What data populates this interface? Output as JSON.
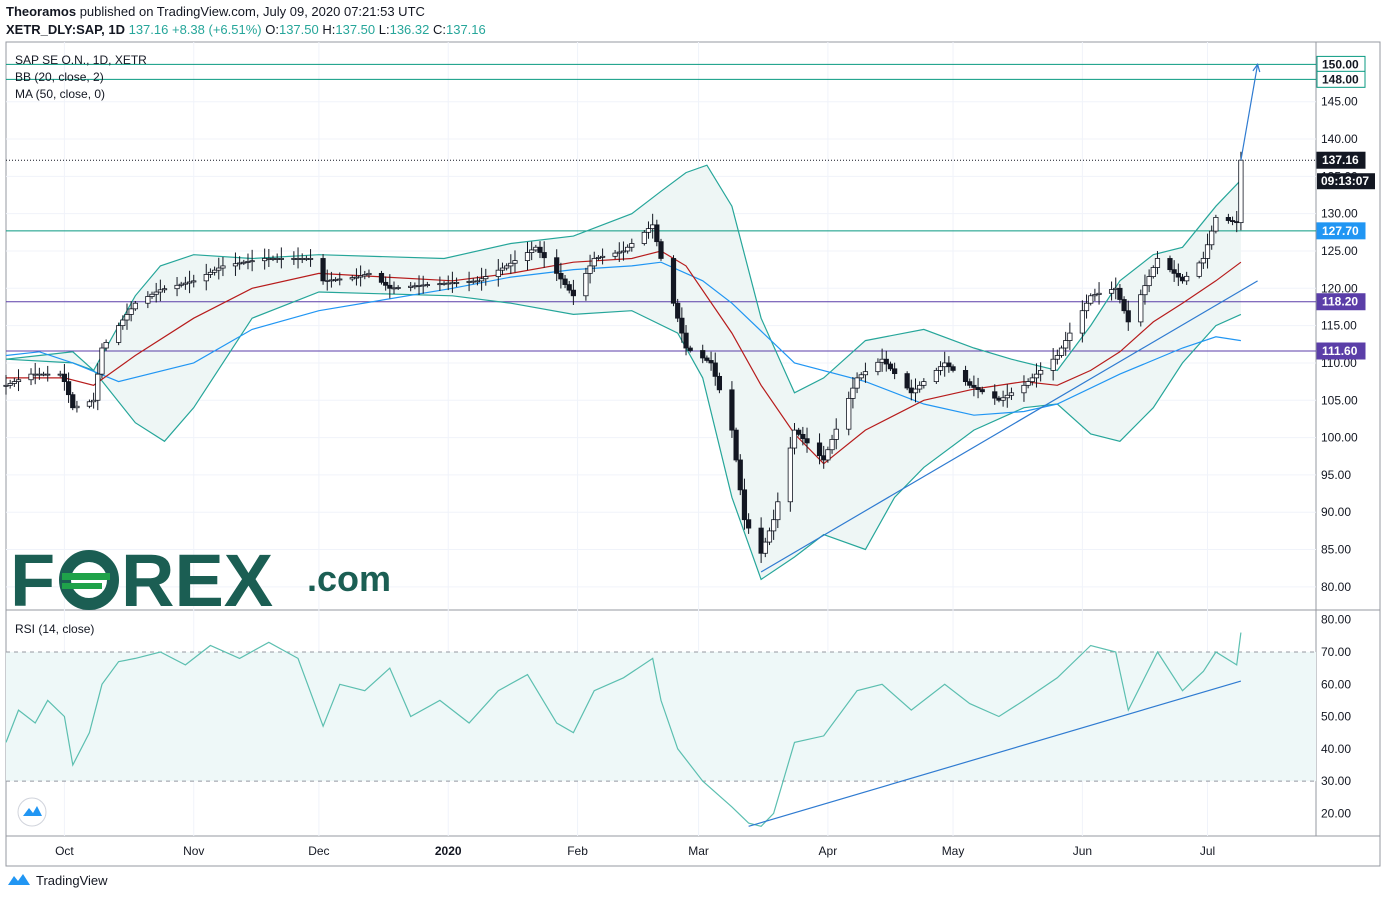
{
  "header": {
    "author": "Theoramos",
    "published_text": "published on TradingView.com, July 09, 2020 07:21:53 UTC",
    "symbol": "XETR_DLY:SAP, 1D",
    "last": "137.16",
    "change": "+8.38 (+6.51%)",
    "o_label": "O:",
    "o": "137.50",
    "h_label": "H:",
    "h": "137.50",
    "l_label": "L:",
    "l": "136.32",
    "c_label": "C:",
    "c": "137.16"
  },
  "legend": {
    "name": "SAP SE O.N., 1D, XETR",
    "bb": "BB (20, close, 2)",
    "ma": "MA (50, close, 0)",
    "rsi": "RSI (14, close)"
  },
  "watermark": {
    "brand_left": "F",
    "brand_mid": "REX",
    "brand_suffix": ".com"
  },
  "footer": {
    "brand": "TradingView"
  },
  "colors": {
    "up": "#ffffff",
    "down": "#131722",
    "bb": "#26a69a",
    "bb_fill": "#eef6f5",
    "ma50": "#2196f3",
    "basis": "#b71c1c",
    "level_teal": "#089981",
    "level_purple": "#5b3ea8",
    "trend": "#2f7bd1",
    "rsi": "#5cbfb0",
    "brand": "#1b5e53",
    "brand_accent": "#1fa24a"
  },
  "chart_data": {
    "type": "candlestick",
    "x_range": [
      "2019-09-17",
      "2020-07-27"
    ],
    "y_range": [
      76.9,
      153.0
    ],
    "x_ticks": [
      {
        "date": "2019-10-01",
        "label": "Oct"
      },
      {
        "date": "2019-11-01",
        "label": "Nov"
      },
      {
        "date": "2019-12-01",
        "label": "Dec"
      },
      {
        "date": "2020-01-01",
        "label": "2020"
      },
      {
        "date": "2020-02-01",
        "label": "Feb"
      },
      {
        "date": "2020-03-01",
        "label": "Mar"
      },
      {
        "date": "2020-04-01",
        "label": "Apr"
      },
      {
        "date": "2020-05-01",
        "label": "May"
      },
      {
        "date": "2020-06-01",
        "label": "Jun"
      },
      {
        "date": "2020-07-01",
        "label": "Jul"
      }
    ],
    "y_ticks": [
      "80.00",
      "85.00",
      "90.00",
      "95.00",
      "100.00",
      "105.00",
      "110.00",
      "115.00",
      "120.00",
      "125.00",
      "130.00",
      "135.00",
      "140.00",
      "145.00"
    ],
    "price_labels": [
      {
        "value": 150.0,
        "text": "150.00",
        "style": "level"
      },
      {
        "value": 148.0,
        "text": "148.00",
        "style": "level"
      },
      {
        "value": 137.16,
        "text": "137.16",
        "style": "last"
      },
      {
        "value": 127.7,
        "text": "127.70",
        "style": "blue"
      },
      {
        "value": 118.2,
        "text": "118.20",
        "style": "purple"
      },
      {
        "value": 111.6,
        "text": "111.60",
        "style": "purple"
      }
    ],
    "countdown": "09:13:07",
    "horizontal_levels": [
      {
        "value": 150.0,
        "color": "level_teal"
      },
      {
        "value": 148.0,
        "color": "level_teal"
      },
      {
        "value": 127.7,
        "color": "level_teal"
      },
      {
        "value": 118.2,
        "color": "level_purple"
      },
      {
        "value": 111.6,
        "color": "level_purple"
      }
    ],
    "last_price": 137.16,
    "anchors": [
      [
        "2019-09-17",
        107.0
      ],
      [
        "2019-09-23",
        108.5
      ],
      [
        "2019-09-30",
        108.5
      ],
      [
        "2019-10-01",
        107.5
      ],
      [
        "2019-10-03",
        104.0
      ],
      [
        "2019-10-08",
        105.0
      ],
      [
        "2019-10-10",
        112.0
      ],
      [
        "2019-10-14",
        115.0
      ],
      [
        "2019-10-18",
        118.0
      ],
      [
        "2019-10-24",
        119.8
      ],
      [
        "2019-11-01",
        121.0
      ],
      [
        "2019-11-08",
        123.0
      ],
      [
        "2019-11-18",
        124.0
      ],
      [
        "2019-11-29",
        124.0
      ],
      [
        "2019-12-02",
        121.0
      ],
      [
        "2019-12-10",
        121.5
      ],
      [
        "2019-12-13",
        122.0
      ],
      [
        "2019-12-18",
        120.0
      ],
      [
        "2019-12-27",
        120.5
      ],
      [
        "2020-01-08",
        121.0
      ],
      [
        "2020-01-15",
        123.0
      ],
      [
        "2020-01-22",
        125.5
      ],
      [
        "2020-01-27",
        122.0
      ],
      [
        "2020-01-31",
        119.0
      ],
      [
        "2020-02-05",
        124.0
      ],
      [
        "2020-02-12",
        125.0
      ],
      [
        "2020-02-19",
        128.5
      ],
      [
        "2020-02-21",
        124.0
      ],
      [
        "2020-02-27",
        112.0
      ],
      [
        "2020-03-04",
        110.0
      ],
      [
        "2020-03-09",
        101.0
      ],
      [
        "2020-03-12",
        89.0
      ],
      [
        "2020-03-16",
        84.5
      ],
      [
        "2020-03-19",
        89.0
      ],
      [
        "2020-03-24",
        101.0
      ],
      [
        "2020-03-31",
        97.0
      ],
      [
        "2020-04-08",
        108.0
      ],
      [
        "2020-04-14",
        110.5
      ],
      [
        "2020-04-21",
        106.0
      ],
      [
        "2020-04-29",
        110.0
      ],
      [
        "2020-05-05",
        107.0
      ],
      [
        "2020-05-12",
        105.0
      ],
      [
        "2020-05-18",
        107.0
      ],
      [
        "2020-05-26",
        111.0
      ],
      [
        "2020-06-03",
        119.0
      ],
      [
        "2020-06-09",
        120.0
      ],
      [
        "2020-06-12",
        115.5
      ],
      [
        "2020-06-19",
        124.0
      ],
      [
        "2020-06-25",
        121.0
      ],
      [
        "2020-06-30",
        124.0
      ],
      [
        "2020-07-03",
        129.5
      ],
      [
        "2020-07-08",
        128.8
      ],
      [
        "2020-07-09",
        137.16
      ]
    ],
    "bb_upper": [
      [
        "2019-09-17",
        110.5
      ],
      [
        "2019-10-03",
        110.0
      ],
      [
        "2019-10-08",
        109.0
      ],
      [
        "2019-10-18",
        119.0
      ],
      [
        "2019-10-24",
        123.0
      ],
      [
        "2019-11-01",
        124.5
      ],
      [
        "2019-11-15",
        124.0
      ],
      [
        "2019-12-01",
        124.5
      ],
      [
        "2019-12-31",
        124.0
      ],
      [
        "2020-01-16",
        126.0
      ],
      [
        "2020-01-31",
        127.0
      ],
      [
        "2020-02-14",
        130.0
      ],
      [
        "2020-02-21",
        133.0
      ],
      [
        "2020-02-27",
        135.5
      ],
      [
        "2020-03-03",
        136.5
      ],
      [
        "2020-03-09",
        131.0
      ],
      [
        "2020-03-16",
        116.0
      ],
      [
        "2020-03-24",
        106.0
      ],
      [
        "2020-03-31",
        108.0
      ],
      [
        "2020-04-10",
        113.0
      ],
      [
        "2020-04-24",
        114.5
      ],
      [
        "2020-05-06",
        112.0
      ],
      [
        "2020-05-15",
        110.5
      ],
      [
        "2020-05-26",
        109.0
      ],
      [
        "2020-06-03",
        115.0
      ],
      [
        "2020-06-10",
        121.0
      ],
      [
        "2020-06-18",
        124.5
      ],
      [
        "2020-06-25",
        125.5
      ],
      [
        "2020-07-03",
        131.0
      ],
      [
        "2020-07-09",
        134.5
      ]
    ],
    "bb_lower": [
      [
        "2019-09-17",
        110.5
      ],
      [
        "2019-09-25",
        111.0
      ],
      [
        "2019-10-03",
        111.5
      ],
      [
        "2019-10-08",
        109.0
      ],
      [
        "2019-10-18",
        102.0
      ],
      [
        "2019-10-25",
        99.5
      ],
      [
        "2019-11-01",
        104.0
      ],
      [
        "2019-11-15",
        116.0
      ],
      [
        "2019-12-01",
        119.5
      ],
      [
        "2020-01-02",
        119.0
      ],
      [
        "2020-01-16",
        118.0
      ],
      [
        "2020-01-31",
        116.5
      ],
      [
        "2020-02-14",
        117.0
      ],
      [
        "2020-02-25",
        114.0
      ],
      [
        "2020-03-02",
        108.0
      ],
      [
        "2020-03-09",
        92.0
      ],
      [
        "2020-03-16",
        81.0
      ],
      [
        "2020-03-24",
        84.0
      ],
      [
        "2020-03-31",
        87.0
      ],
      [
        "2020-04-10",
        85.0
      ],
      [
        "2020-04-17",
        92.0
      ],
      [
        "2020-04-24",
        96.0
      ],
      [
        "2020-05-06",
        101.0
      ],
      [
        "2020-05-18",
        104.0
      ],
      [
        "2020-05-26",
        104.5
      ],
      [
        "2020-06-03",
        100.5
      ],
      [
        "2020-06-10",
        99.5
      ],
      [
        "2020-06-18",
        104.0
      ],
      [
        "2020-06-25",
        110.0
      ],
      [
        "2020-07-03",
        115.0
      ],
      [
        "2020-07-09",
        116.5
      ]
    ],
    "bb_basis": [
      [
        "2019-09-17",
        108.0
      ],
      [
        "2019-10-01",
        108.0
      ],
      [
        "2019-10-08",
        107.0
      ],
      [
        "2019-10-18",
        111.0
      ],
      [
        "2019-11-01",
        116.0
      ],
      [
        "2019-11-15",
        120.0
      ],
      [
        "2019-12-01",
        122.0
      ],
      [
        "2020-01-02",
        121.0
      ],
      [
        "2020-01-16",
        122.0
      ],
      [
        "2020-01-31",
        123.5
      ],
      [
        "2020-02-14",
        124.0
      ],
      [
        "2020-02-21",
        125.0
      ],
      [
        "2020-02-27",
        123.0
      ],
      [
        "2020-03-09",
        114.0
      ],
      [
        "2020-03-16",
        107.0
      ],
      [
        "2020-03-24",
        100.5
      ],
      [
        "2020-03-31",
        96.5
      ],
      [
        "2020-04-10",
        101.0
      ],
      [
        "2020-04-24",
        105.0
      ],
      [
        "2020-05-06",
        106.5
      ],
      [
        "2020-05-18",
        107.5
      ],
      [
        "2020-05-26",
        107.0
      ],
      [
        "2020-06-03",
        109.0
      ],
      [
        "2020-06-10",
        111.5
      ],
      [
        "2020-06-18",
        115.5
      ],
      [
        "2020-06-25",
        118.0
      ],
      [
        "2020-07-03",
        121.0
      ],
      [
        "2020-07-09",
        123.5
      ]
    ],
    "ma50": [
      [
        "2019-09-17",
        111.0
      ],
      [
        "2019-09-25",
        111.5
      ],
      [
        "2019-10-03",
        110.0
      ],
      [
        "2019-10-14",
        107.5
      ],
      [
        "2019-11-01",
        110.0
      ],
      [
        "2019-11-15",
        114.5
      ],
      [
        "2019-12-01",
        117.0
      ],
      [
        "2020-01-02",
        120.0
      ],
      [
        "2020-01-16",
        121.5
      ],
      [
        "2020-01-31",
        122.5
      ],
      [
        "2020-02-14",
        123.0
      ],
      [
        "2020-02-21",
        123.5
      ],
      [
        "2020-03-02",
        121.0
      ],
      [
        "2020-03-09",
        118.0
      ],
      [
        "2020-03-24",
        110.0
      ],
      [
        "2020-04-10",
        107.5
      ],
      [
        "2020-04-24",
        104.5
      ],
      [
        "2020-05-06",
        103.0
      ],
      [
        "2020-05-18",
        103.5
      ],
      [
        "2020-05-26",
        104.5
      ],
      [
        "2020-06-10",
        108.5
      ],
      [
        "2020-06-25",
        112.0
      ],
      [
        "2020-07-03",
        113.5
      ],
      [
        "2020-07-09",
        113.0
      ]
    ],
    "trendlines": [
      {
        "from": [
          "2020-03-16",
          82.0
        ],
        "to": [
          "2020-07-13",
          121.0
        ]
      },
      {
        "from": [
          "2020-07-09",
          137.16
        ],
        "to": [
          "2020-07-13",
          150.0
        ],
        "arrow": true
      }
    ],
    "rsi": {
      "range": [
        13,
        83
      ],
      "y_ticks": [
        "20.00",
        "30.00",
        "40.00",
        "50.00",
        "60.00",
        "70.00",
        "80.00"
      ],
      "band": [
        30,
        70
      ],
      "points": [
        [
          "2019-09-17",
          42
        ],
        [
          "2019-09-20",
          52
        ],
        [
          "2019-09-24",
          48
        ],
        [
          "2019-09-27",
          55
        ],
        [
          "2019-10-01",
          50
        ],
        [
          "2019-10-03",
          35
        ],
        [
          "2019-10-07",
          45
        ],
        [
          "2019-10-10",
          60
        ],
        [
          "2019-10-14",
          67
        ],
        [
          "2019-10-18",
          68
        ],
        [
          "2019-10-24",
          70
        ],
        [
          "2019-10-30",
          66
        ],
        [
          "2019-11-05",
          72
        ],
        [
          "2019-11-12",
          68
        ],
        [
          "2019-11-19",
          73
        ],
        [
          "2019-11-26",
          68
        ],
        [
          "2019-12-02",
          47
        ],
        [
          "2019-12-06",
          60
        ],
        [
          "2019-12-12",
          58
        ],
        [
          "2019-12-18",
          65
        ],
        [
          "2019-12-23",
          50
        ],
        [
          "2019-12-30",
          55
        ],
        [
          "2020-01-06",
          48
        ],
        [
          "2020-01-13",
          58
        ],
        [
          "2020-01-20",
          63
        ],
        [
          "2020-01-27",
          48
        ],
        [
          "2020-01-31",
          45
        ],
        [
          "2020-02-05",
          58
        ],
        [
          "2020-02-12",
          62
        ],
        [
          "2020-02-19",
          68
        ],
        [
          "2020-02-21",
          55
        ],
        [
          "2020-02-25",
          40
        ],
        [
          "2020-03-02",
          30
        ],
        [
          "2020-03-09",
          22
        ],
        [
          "2020-03-13",
          17
        ],
        [
          "2020-03-16",
          16
        ],
        [
          "2020-03-19",
          20
        ],
        [
          "2020-03-24",
          42
        ],
        [
          "2020-03-31",
          44
        ],
        [
          "2020-04-08",
          58
        ],
        [
          "2020-04-14",
          60
        ],
        [
          "2020-04-21",
          52
        ],
        [
          "2020-04-29",
          60
        ],
        [
          "2020-05-05",
          54
        ],
        [
          "2020-05-12",
          50
        ],
        [
          "2020-05-18",
          55
        ],
        [
          "2020-05-26",
          62
        ],
        [
          "2020-06-03",
          72
        ],
        [
          "2020-06-09",
          70
        ],
        [
          "2020-06-12",
          52
        ],
        [
          "2020-06-19",
          70
        ],
        [
          "2020-06-25",
          58
        ],
        [
          "2020-06-30",
          64
        ],
        [
          "2020-07-03",
          70
        ],
        [
          "2020-07-08",
          66
        ],
        [
          "2020-07-09",
          76
        ]
      ],
      "trendline": {
        "from": [
          "2020-03-13",
          16.0
        ],
        "to": [
          "2020-07-09",
          61.0
        ]
      }
    }
  }
}
